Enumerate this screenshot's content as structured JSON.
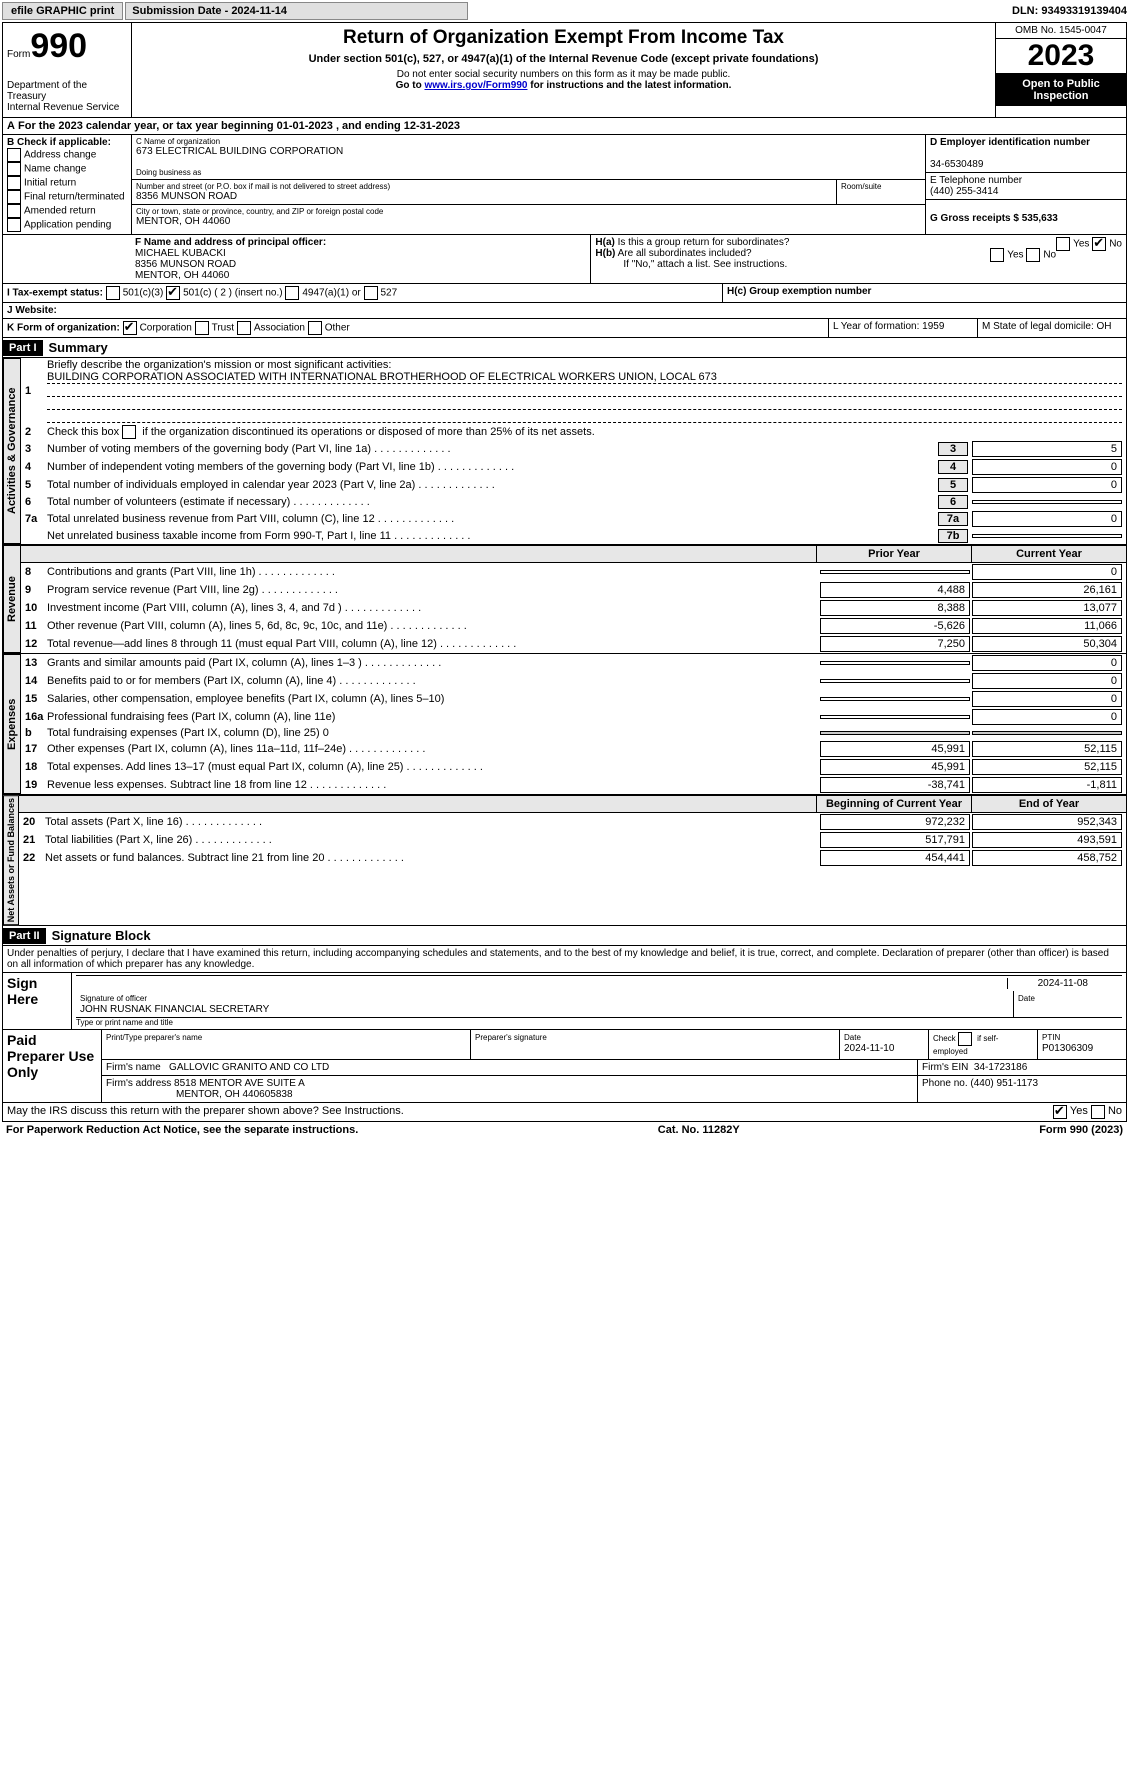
{
  "top": {
    "efile": "efile GRAPHIC print",
    "subdate": "Submission Date - 2024-11-14",
    "dln": "DLN: 93493319139404"
  },
  "hdr": {
    "form": "Form",
    "num": "990",
    "title": "Return of Organization Exempt From Income Tax",
    "sub": "Under section 501(c), 527, or 4947(a)(1) of the Internal Revenue Code (except private foundations)",
    "ssn": "Do not enter social security numbers on this form as it may be made public.",
    "goto": "Go to ",
    "link": "www.irs.gov/Form990",
    "after": " for instructions and the latest information.",
    "dept": "Department of the Treasury",
    "irs": "Internal Revenue Service"
  },
  "box": {
    "omb": "OMB No. 1545-0047",
    "year": "2023",
    "open": "Open to Public Inspection"
  },
  "A": {
    "txt": "For the 2023 calendar year, or tax year beginning 01-01-2023   , and ending 12-31-2023"
  },
  "B": {
    "title": "B Check if applicable:",
    "opts": [
      "Address change",
      "Name change",
      "Initial return",
      "Final return/terminated",
      "Amended return",
      "Application pending"
    ]
  },
  "C": {
    "lbl": "C Name of organization",
    "name": "673 ELECTRICAL BUILDING CORPORATION",
    "dba": "Doing business as",
    "addr_lbl": "Number and street (or P.O. box if mail is not delivered to street address)",
    "addr": "8356 MUNSON ROAD",
    "room": "Room/suite",
    "city_lbl": "City or town, state or province, country, and ZIP or foreign postal code",
    "city": "MENTOR, OH  44060"
  },
  "D": {
    "lbl": "D Employer identification number",
    "val": "34-6530489"
  },
  "E": {
    "lbl": "E Telephone number",
    "val": "(440) 255-3414"
  },
  "G": {
    "txt": "G Gross receipts $ 535,633"
  },
  "F": {
    "lbl": "F  Name and address of principal officer:",
    "name": "MICHAEL KUBACKI",
    "addr": "8356 MUNSON ROAD",
    "city": "MENTOR, OH  44060"
  },
  "H": {
    "a": "H(a)  Is this a group return for subordinates?",
    "b": "H(b)  Are all subordinates included?",
    "bnote": "If \"No,\" attach a list. See instructions.",
    "c": "H(c)  Group exemption number",
    "yes": "Yes",
    "no": "No"
  },
  "I": {
    "lbl": "I   Tax-exempt status:",
    "opts": [
      "501(c)(3)",
      "501(c) ( 2 ) (insert no.)",
      "4947(a)(1) or",
      "527"
    ]
  },
  "J": {
    "lbl": "J   Website: "
  },
  "K": {
    "lbl": "K Form of organization:",
    "opts": [
      "Corporation",
      "Trust",
      "Association",
      "Other"
    ]
  },
  "L": {
    "txt": "L Year of formation: 1959"
  },
  "M": {
    "txt": "M State of legal domicile: OH"
  },
  "p1": {
    "part": "Part I",
    "title": "Summary",
    "l1a": "Briefly describe the organization's mission or most significant activities:",
    "l1b": "BUILDING CORPORATION ASSOCIATED WITH INTERNATIONAL BROTHERHOOD OF ELECTRICAL WORKERS UNION, LOCAL 673",
    "l2": "Check this box      if the organization discontinued its operations or disposed of more than 25% of its net assets.",
    "gov_lbl": "Activities & Governance",
    "rev_lbl": "Revenue",
    "exp_lbl": "Expenses",
    "net_lbl": "Net Assets or Fund Balances",
    "rows_gov": [
      {
        "n": "3",
        "t": "Number of voting members of the governing body (Part VI, line 1a)",
        "nc": "3",
        "v": "5"
      },
      {
        "n": "4",
        "t": "Number of independent voting members of the governing body (Part VI, line 1b)",
        "nc": "4",
        "v": "0"
      },
      {
        "n": "5",
        "t": "Total number of individuals employed in calendar year 2023 (Part V, line 2a)",
        "nc": "5",
        "v": "0"
      },
      {
        "n": "6",
        "t": "Total number of volunteers (estimate if necessary)",
        "nc": "6",
        "v": ""
      },
      {
        "n": "7a",
        "t": "Total unrelated business revenue from Part VIII, column (C), line 12",
        "nc": "7a",
        "v": "0"
      },
      {
        "n": "",
        "t": "Net unrelated business taxable income from Form 990-T, Part I, line 11",
        "nc": "7b",
        "v": ""
      }
    ],
    "py": "Prior Year",
    "cy": "Current Year",
    "rev": [
      {
        "n": "8",
        "t": "Contributions and grants (Part VIII, line 1h)",
        "p": "",
        "c": "0"
      },
      {
        "n": "9",
        "t": "Program service revenue (Part VIII, line 2g)",
        "p": "4,488",
        "c": "26,161"
      },
      {
        "n": "10",
        "t": "Investment income (Part VIII, column (A), lines 3, 4, and 7d )",
        "p": "8,388",
        "c": "13,077"
      },
      {
        "n": "11",
        "t": "Other revenue (Part VIII, column (A), lines 5, 6d, 8c, 9c, 10c, and 11e)",
        "p": "-5,626",
        "c": "11,066"
      },
      {
        "n": "12",
        "t": "Total revenue—add lines 8 through 11 (must equal Part VIII, column (A), line 12)",
        "p": "7,250",
        "c": "50,304"
      }
    ],
    "exp": [
      {
        "n": "13",
        "t": "Grants and similar amounts paid (Part IX, column (A), lines 1–3 )",
        "p": "",
        "c": "0"
      },
      {
        "n": "14",
        "t": "Benefits paid to or for members (Part IX, column (A), line 4)",
        "p": "",
        "c": "0"
      },
      {
        "n": "15",
        "t": "Salaries, other compensation, employee benefits (Part IX, column (A), lines 5–10)",
        "p": "",
        "c": "0"
      },
      {
        "n": "16a",
        "t": "Professional fundraising fees (Part IX, column (A), line 11e)",
        "p": "",
        "c": "0"
      },
      {
        "n": "b",
        "t": "Total fundraising expenses (Part IX, column (D), line 25) 0",
        "p": "grey",
        "c": "grey"
      },
      {
        "n": "17",
        "t": "Other expenses (Part IX, column (A), lines 11a–11d, 11f–24e)",
        "p": "45,991",
        "c": "52,115"
      },
      {
        "n": "18",
        "t": "Total expenses. Add lines 13–17 (must equal Part IX, column (A), line 25)",
        "p": "45,991",
        "c": "52,115"
      },
      {
        "n": "19",
        "t": "Revenue less expenses. Subtract line 18 from line 12",
        "p": "-38,741",
        "c": "-1,811"
      }
    ],
    "bcy": "Beginning of Current Year",
    "eoy": "End of Year",
    "net": [
      {
        "n": "20",
        "t": "Total assets (Part X, line 16)",
        "p": "972,232",
        "c": "952,343"
      },
      {
        "n": "21",
        "t": "Total liabilities (Part X, line 26)",
        "p": "517,791",
        "c": "493,591"
      },
      {
        "n": "22",
        "t": "Net assets or fund balances. Subtract line 21 from line 20",
        "p": "454,441",
        "c": "458,752"
      }
    ]
  },
  "p2": {
    "part": "Part II",
    "title": "Signature Block",
    "decl": "Under penalties of perjury, I declare that I have examined this return, including accompanying schedules and statements, and to the best of my knowledge and belief, it is true, correct, and complete. Declaration of preparer (other than officer) is based on all information of which preparer has any knowledge.",
    "sign": "Sign Here",
    "sig_lbl": "Signature of officer",
    "date_lbl": "Date",
    "sig_date": "2024-11-08",
    "officer": "JOHN RUSNAK  FINANCIAL SECRETARY",
    "type_lbl": "Type or print name and title",
    "paid": "Paid Preparer Use Only",
    "prep_name_lbl": "Print/Type preparer's name",
    "prep_sig_lbl": "Preparer's signature",
    "prep_date": "2024-11-10",
    "check_self": "Check        if self-employed",
    "ptin_lbl": "PTIN",
    "ptin": "P01306309",
    "firm_name_lbl": "Firm's name",
    "firm_name": "GALLOVIC GRANITO AND CO LTD",
    "firm_ein_lbl": "Firm's EIN",
    "firm_ein": "34-1723186",
    "firm_addr_lbl": "Firm's address",
    "firm_addr1": "8518 MENTOR AVE SUITE A",
    "firm_addr2": "MENTOR, OH  440605838",
    "phone_lbl": "Phone no.",
    "phone": "(440) 951-1173",
    "discuss": "May the IRS discuss this return with the preparer shown above? See Instructions."
  },
  "footer": {
    "l": "For Paperwork Reduction Act Notice, see the separate instructions.",
    "c": "Cat. No. 11282Y",
    "r": "Form 990 (2023)"
  }
}
